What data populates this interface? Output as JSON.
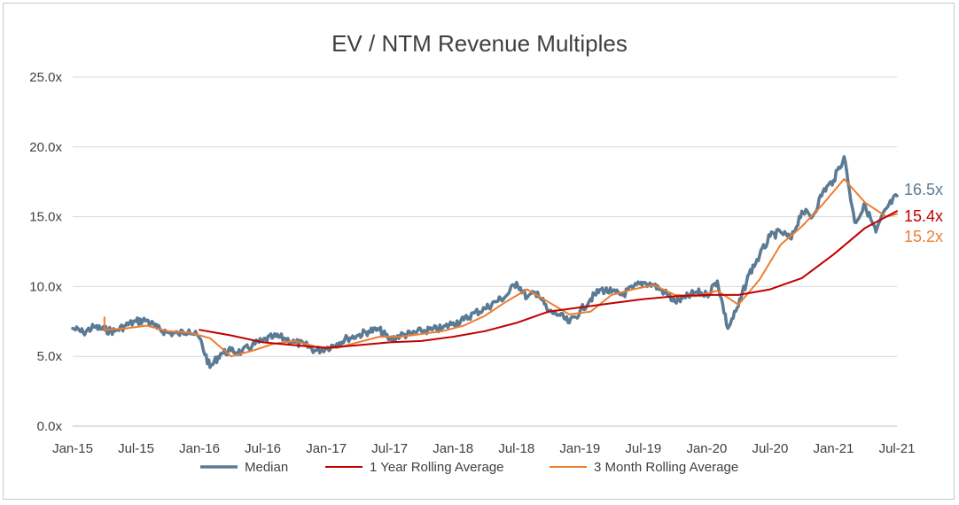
{
  "chart_data": {
    "type": "line",
    "title": "EV / NTM Revenue Multiples",
    "xlabel": "",
    "ylabel": "",
    "y_tick_labels": [
      "0.0x",
      "5.0x",
      "10.0x",
      "15.0x",
      "20.0x",
      "25.0x"
    ],
    "y_tick_values": [
      0,
      5,
      10,
      15,
      20,
      25
    ],
    "ylim": [
      0,
      25
    ],
    "x_tick_labels": [
      "Jan-15",
      "Jul-15",
      "Jan-16",
      "Jul-16",
      "Jan-17",
      "Jul-17",
      "Jan-18",
      "Jul-18",
      "Jan-19",
      "Jul-19",
      "Jan-20",
      "Jul-20",
      "Jan-21",
      "Jul-21"
    ],
    "x_tick_values": [
      "2015-01",
      "2015-07",
      "2016-01",
      "2016-07",
      "2017-01",
      "2017-07",
      "2018-01",
      "2018-07",
      "2019-01",
      "2019-07",
      "2020-01",
      "2020-07",
      "2021-01",
      "2021-07"
    ],
    "xlim": [
      "2015-01",
      "2021-07"
    ],
    "grid": "horizontal",
    "legend_position": "bottom",
    "colors": {
      "median": "#5b7a93",
      "one_year": "#c00000",
      "three_month": "#ed7d31",
      "grid": "#d9d9d9",
      "axis": "#bfbfbf"
    },
    "series": [
      {
        "name": "Median",
        "end_label": "16.5x",
        "points": [
          [
            "2015-01",
            7.0
          ],
          [
            "2015-02",
            6.7
          ],
          [
            "2015-03",
            7.1
          ],
          [
            "2015-04",
            6.9
          ],
          [
            "2015-05",
            6.8
          ],
          [
            "2015-06",
            7.2
          ],
          [
            "2015-07",
            7.5
          ],
          [
            "2015-08",
            7.6
          ],
          [
            "2015-09",
            7.0
          ],
          [
            "2015-10",
            6.7
          ],
          [
            "2015-11",
            6.6
          ],
          [
            "2015-12",
            6.9
          ],
          [
            "2016-01",
            6.3
          ],
          [
            "2016-02",
            4.2
          ],
          [
            "2016-03",
            5.2
          ],
          [
            "2016-04",
            5.4
          ],
          [
            "2016-05",
            5.3
          ],
          [
            "2016-06",
            5.8
          ],
          [
            "2016-07",
            6.1
          ],
          [
            "2016-08",
            6.4
          ],
          [
            "2016-09",
            6.3
          ],
          [
            "2016-10",
            6.0
          ],
          [
            "2016-11",
            5.8
          ],
          [
            "2016-12",
            5.4
          ],
          [
            "2017-01",
            5.6
          ],
          [
            "2017-02",
            5.9
          ],
          [
            "2017-03",
            6.3
          ],
          [
            "2017-04",
            6.5
          ],
          [
            "2017-05",
            6.8
          ],
          [
            "2017-06",
            6.9
          ],
          [
            "2017-07",
            6.2
          ],
          [
            "2017-08",
            6.5
          ],
          [
            "2017-09",
            6.6
          ],
          [
            "2017-10",
            6.8
          ],
          [
            "2017-11",
            6.9
          ],
          [
            "2017-12",
            7.0
          ],
          [
            "2018-01",
            7.4
          ],
          [
            "2018-02",
            7.6
          ],
          [
            "2018-03",
            8.1
          ],
          [
            "2018-04",
            8.4
          ],
          [
            "2018-05",
            8.9
          ],
          [
            "2018-06",
            9.3
          ],
          [
            "2018-07",
            10.3
          ],
          [
            "2018-08",
            9.2
          ],
          [
            "2018-09",
            9.6
          ],
          [
            "2018-10",
            8.2
          ],
          [
            "2018-11",
            8.0
          ],
          [
            "2018-12",
            7.4
          ],
          [
            "2019-01",
            8.2
          ],
          [
            "2019-02",
            9.1
          ],
          [
            "2019-03",
            9.8
          ],
          [
            "2019-04",
            9.6
          ],
          [
            "2019-05",
            9.4
          ],
          [
            "2019-06",
            9.9
          ],
          [
            "2019-07",
            10.3
          ],
          [
            "2019-08",
            10.1
          ],
          [
            "2019-09",
            9.6
          ],
          [
            "2019-10",
            8.9
          ],
          [
            "2019-11",
            9.2
          ],
          [
            "2019-12",
            9.6
          ],
          [
            "2020-01",
            9.4
          ],
          [
            "2020-02",
            10.4
          ],
          [
            "2020-03",
            7.0
          ],
          [
            "2020-04",
            8.6
          ],
          [
            "2020-05",
            10.9
          ],
          [
            "2020-06",
            12.2
          ],
          [
            "2020-07",
            13.6
          ],
          [
            "2020-08",
            13.9
          ],
          [
            "2020-09",
            13.4
          ],
          [
            "2020-10",
            15.4
          ],
          [
            "2020-11",
            15.0
          ],
          [
            "2020-12",
            16.8
          ],
          [
            "2021-01",
            17.6
          ],
          [
            "2021-02",
            19.3
          ],
          [
            "2021-03",
            14.6
          ],
          [
            "2021-04",
            15.8
          ],
          [
            "2021-05",
            13.9
          ],
          [
            "2021-06",
            15.6
          ],
          [
            "2021-07",
            16.5
          ]
        ]
      },
      {
        "name": "1 Year Rolling Average",
        "end_label": "15.4x",
        "points": [
          [
            "2016-01",
            6.9
          ],
          [
            "2016-04",
            6.5
          ],
          [
            "2016-07",
            6.0
          ],
          [
            "2016-10",
            5.8
          ],
          [
            "2017-01",
            5.6
          ],
          [
            "2017-04",
            5.8
          ],
          [
            "2017-07",
            6.0
          ],
          [
            "2017-10",
            6.1
          ],
          [
            "2018-01",
            6.4
          ],
          [
            "2018-04",
            6.8
          ],
          [
            "2018-07",
            7.4
          ],
          [
            "2018-10",
            8.2
          ],
          [
            "2019-01",
            8.5
          ],
          [
            "2019-04",
            8.8
          ],
          [
            "2019-07",
            9.1
          ],
          [
            "2019-10",
            9.3
          ],
          [
            "2020-01",
            9.4
          ],
          [
            "2020-04",
            9.4
          ],
          [
            "2020-07",
            9.8
          ],
          [
            "2020-10",
            10.6
          ],
          [
            "2021-01",
            12.3
          ],
          [
            "2021-04",
            14.2
          ],
          [
            "2021-07",
            15.4
          ]
        ]
      },
      {
        "name": "3 Month Rolling Average",
        "end_label": "15.2x",
        "points": [
          [
            "2015-04",
            7.8
          ],
          [
            "2015-04",
            6.9
          ],
          [
            "2015-06",
            7.0
          ],
          [
            "2015-08",
            7.2
          ],
          [
            "2015-10",
            6.8
          ],
          [
            "2015-12",
            6.7
          ],
          [
            "2016-02",
            6.3
          ],
          [
            "2016-04",
            5.0
          ],
          [
            "2016-06",
            5.4
          ],
          [
            "2016-08",
            5.9
          ],
          [
            "2016-10",
            6.1
          ],
          [
            "2016-12",
            5.7
          ],
          [
            "2017-02",
            5.6
          ],
          [
            "2017-04",
            6.0
          ],
          [
            "2017-06",
            6.4
          ],
          [
            "2017-08",
            6.4
          ],
          [
            "2017-10",
            6.6
          ],
          [
            "2017-12",
            6.8
          ],
          [
            "2018-02",
            7.2
          ],
          [
            "2018-04",
            7.9
          ],
          [
            "2018-06",
            8.9
          ],
          [
            "2018-08",
            9.8
          ],
          [
            "2018-10",
            8.9
          ],
          [
            "2018-12",
            8.0
          ],
          [
            "2019-02",
            8.2
          ],
          [
            "2019-04",
            9.4
          ],
          [
            "2019-06",
            9.8
          ],
          [
            "2019-08",
            10.1
          ],
          [
            "2019-10",
            9.4
          ],
          [
            "2019-12",
            9.3
          ],
          [
            "2020-02",
            9.7
          ],
          [
            "2020-04",
            8.7
          ],
          [
            "2020-06",
            10.5
          ],
          [
            "2020-08",
            13.0
          ],
          [
            "2020-10",
            14.3
          ],
          [
            "2020-12",
            15.9
          ],
          [
            "2021-02",
            17.7
          ],
          [
            "2021-04",
            16.0
          ],
          [
            "2021-06",
            15.0
          ],
          [
            "2021-07",
            15.2
          ]
        ]
      }
    ]
  }
}
